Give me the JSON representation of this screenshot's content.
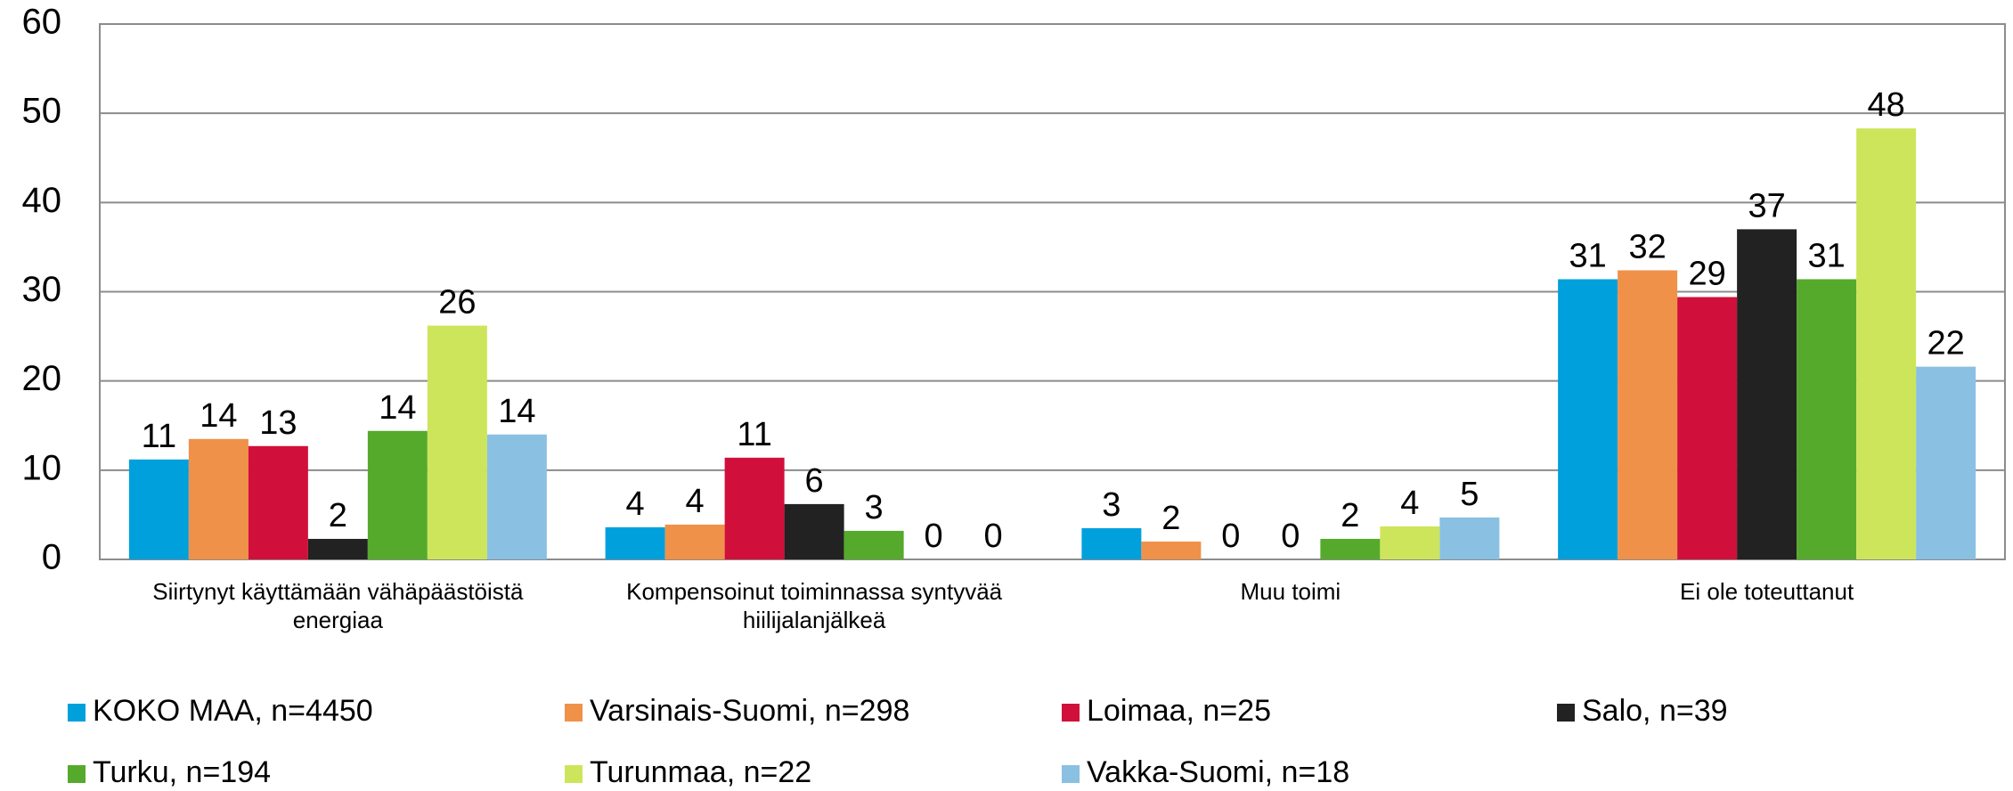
{
  "chart_data": {
    "type": "bar",
    "categories": [
      "Siirtynyt käyttämään vähäpäästöistä energiaa",
      "Kompensoinut toiminnassa syntyvää hiilijalanjälkeä",
      "Muu toimi",
      "Ei ole toteuttanut"
    ],
    "series": [
      {
        "name": "KOKO MAA, n=4450",
        "color": "#00a0dc",
        "values": [
          11.2,
          3.6,
          3.5,
          31.4
        ],
        "value_labels": [
          "11",
          "4",
          "3",
          "31"
        ]
      },
      {
        "name": "Varsinais-Suomi, n=298",
        "color": "#f0914a",
        "values": [
          13.5,
          3.9,
          2.0,
          32.4
        ],
        "value_labels": [
          "14",
          "4",
          "2",
          "32"
        ]
      },
      {
        "name": "Loimaa, n=25",
        "color": "#d0103a",
        "values": [
          12.7,
          11.4,
          0,
          29.4
        ],
        "value_labels": [
          "13",
          "11",
          "0",
          "29"
        ]
      },
      {
        "name": "Salo, n=39",
        "color": "#222222",
        "values": [
          2.3,
          6.2,
          0,
          37.0
        ],
        "value_labels": [
          "2",
          "6",
          "0",
          "37"
        ]
      },
      {
        "name": "Turku, n=194",
        "color": "#55aa2c",
        "values": [
          14.4,
          3.2,
          2.3,
          31.4
        ],
        "value_labels": [
          "14",
          "3",
          "2",
          "31"
        ]
      },
      {
        "name": "Turunmaa, n=22",
        "color": "#cde55a",
        "values": [
          26.2,
          0,
          3.7,
          48.3
        ],
        "value_labels": [
          "26",
          "0",
          "4",
          "48"
        ]
      },
      {
        "name": "Vakka-Suomi, n=18",
        "color": "#8ac0e2",
        "values": [
          14.0,
          0,
          4.7,
          21.6
        ],
        "value_labels": [
          "14",
          "0",
          "5",
          "22"
        ]
      }
    ],
    "ylim": [
      0,
      60
    ],
    "yticks": [
      0,
      10,
      20,
      30,
      40,
      50,
      60
    ],
    "grid": true
  }
}
